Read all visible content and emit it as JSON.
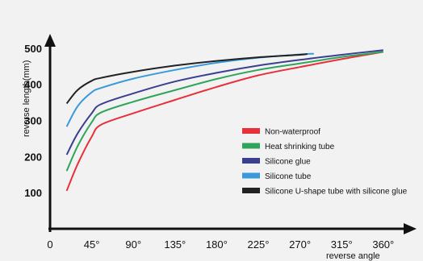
{
  "chart_data": {
    "type": "line",
    "title": "",
    "xlabel": "reverse angle",
    "ylabel": "reverse length(mm)",
    "xlim": [
      0,
      375
    ],
    "ylim": [
      0,
      540
    ],
    "x_ticks": [
      0,
      45,
      90,
      135,
      180,
      225,
      270,
      315,
      360
    ],
    "x_tick_labels": [
      "0",
      "45°",
      "90°",
      "135°",
      "180°",
      "225°",
      "270°",
      "315°",
      "360°"
    ],
    "y_ticks": [
      100,
      200,
      300,
      400,
      500
    ],
    "y_tick_labels": [
      "100",
      "200",
      "300",
      "400",
      "500"
    ],
    "grid": false,
    "legend_position": "center-right",
    "series": [
      {
        "name": "Non-waterproof",
        "color": "#e8303a",
        "x": [
          18,
          30,
          45,
          55,
          90,
          135,
          180,
          225,
          270,
          315,
          360
        ],
        "y": [
          105,
          180,
          255,
          288,
          320,
          357,
          393,
          425,
          448,
          470,
          490
        ]
      },
      {
        "name": "Heat shrinking tube",
        "color": "#2fa45a",
        "x": [
          18,
          30,
          45,
          55,
          90,
          135,
          180,
          225,
          270,
          315,
          360
        ],
        "y": [
          160,
          230,
          295,
          322,
          352,
          384,
          415,
          440,
          458,
          476,
          490
        ]
      },
      {
        "name": "Silicone glue",
        "color": "#3a3f8f",
        "x": [
          18,
          30,
          45,
          55,
          90,
          135,
          180,
          225,
          270,
          315,
          360
        ],
        "y": [
          205,
          265,
          320,
          345,
          375,
          408,
          432,
          452,
          468,
          482,
          495
        ]
      },
      {
        "name": "Silicone tube",
        "color": "#3a9ad9",
        "x": [
          18,
          30,
          45,
          55,
          90,
          135,
          180,
          225,
          270,
          285
        ],
        "y": [
          283,
          340,
          378,
          390,
          416,
          440,
          460,
          474,
          483,
          485
        ]
      },
      {
        "name": "Silicone U-shape tube with silicone glue",
        "color": "#222222",
        "x": [
          18,
          30,
          45,
          55,
          90,
          135,
          180,
          225,
          270,
          278
        ],
        "y": [
          347,
          385,
          410,
          418,
          435,
          452,
          465,
          475,
          482,
          484
        ]
      }
    ]
  }
}
